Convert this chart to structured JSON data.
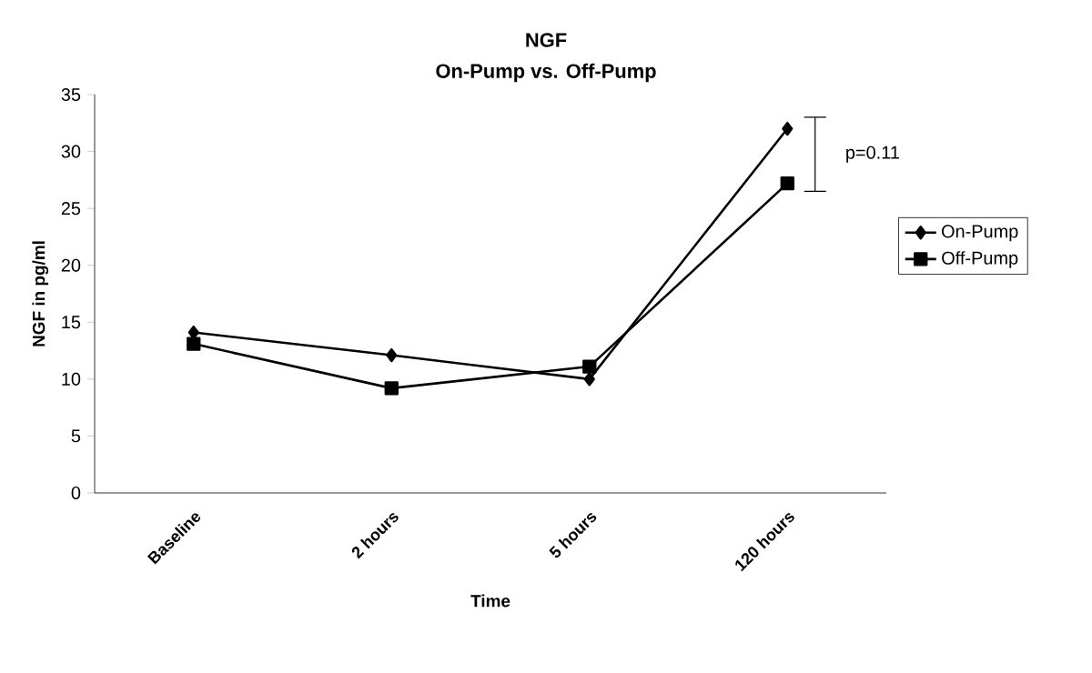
{
  "chart_data": {
    "type": "line",
    "title": "NGF",
    "subtitle": "On-Pump vs. Off-Pump",
    "xlabel": "Time",
    "ylabel": "NGF in pg/ml",
    "categories": [
      "Baseline",
      "2 hours",
      "5 hours",
      "120 hours"
    ],
    "series": [
      {
        "name": "On-Pump",
        "color": "#000000",
        "marker": "diamond",
        "values": [
          14.1,
          12.1,
          10.0,
          32.0
        ]
      },
      {
        "name": "Off-Pump",
        "color": "#000000",
        "marker": "square",
        "values": [
          13.1,
          9.2,
          11.1,
          27.2
        ]
      }
    ],
    "ylim": [
      0,
      35
    ],
    "yticks": [
      0,
      5,
      10,
      15,
      20,
      25,
      30,
      35
    ],
    "grid": false,
    "legend": "right",
    "line_style": "solid",
    "annotations": [
      "p=0.11"
    ]
  }
}
